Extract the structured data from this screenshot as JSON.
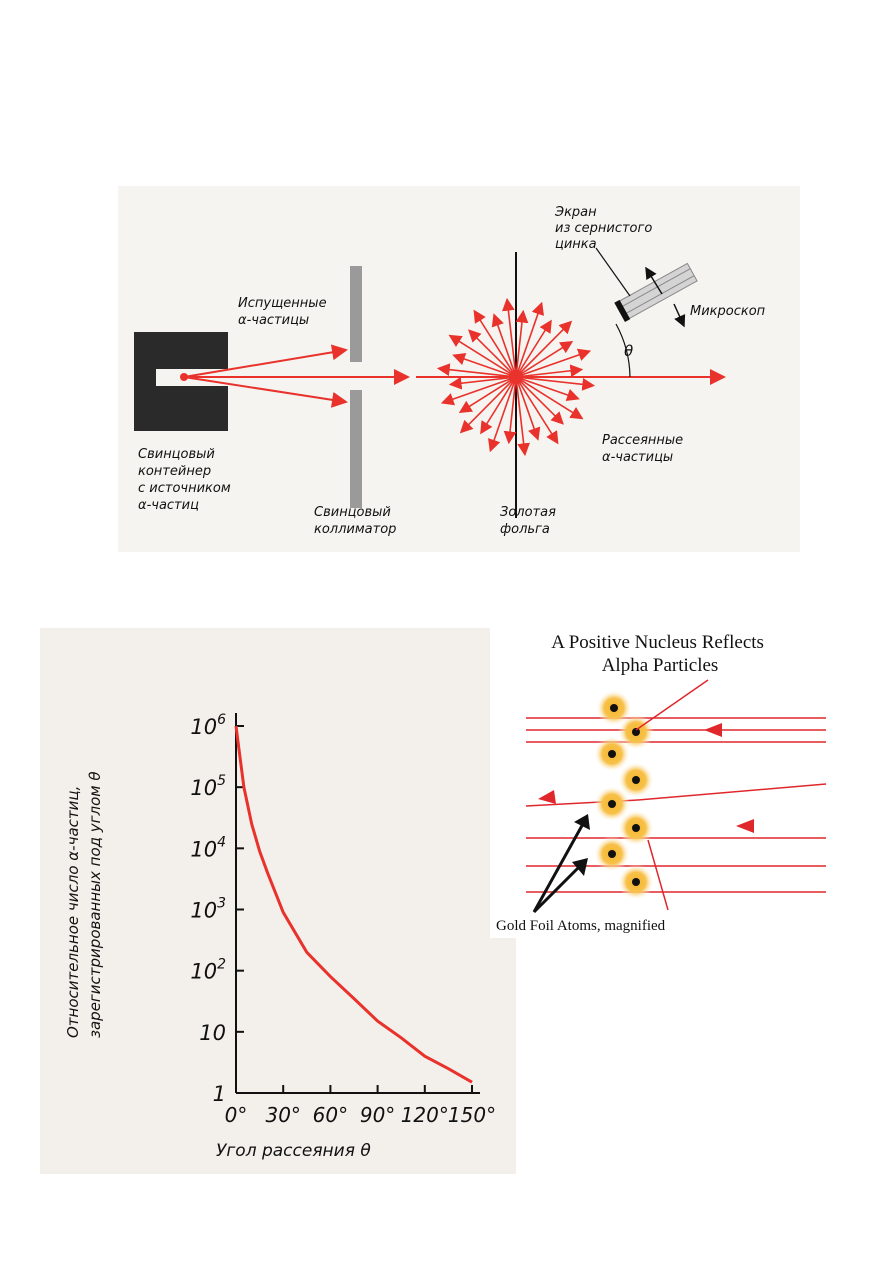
{
  "setup_diagram": {
    "screen_label": [
      "Экран",
      "из сернистого",
      "цинка"
    ],
    "emitted_label": [
      "Испущенные",
      "α-частицы"
    ],
    "microscope_label": "Микроскоп",
    "theta_label": "θ",
    "scattered_label": [
      "Рассеянные",
      "α-частицы"
    ],
    "container_label": [
      "Свинцовый",
      "контейнер",
      "с источником",
      "α-частиц"
    ],
    "collimator_label": [
      "Свинцовый",
      "коллиматор"
    ],
    "foil_label": [
      "Золотая",
      "фольга"
    ],
    "colors": {
      "beam": "#e8322b",
      "lead": "#2a2a2a",
      "collimator": "#9a9a9a"
    }
  },
  "chart_data": {
    "type": "line",
    "ylabel": [
      "Относительное число α-частиц,",
      "зарегистрированных под углом θ"
    ],
    "xlabel": "Угол рассеяния θ",
    "x_ticks": [
      "0°",
      "30°",
      "60°",
      "90°",
      "120°",
      "150°"
    ],
    "y_ticks": [
      {
        "base": "1",
        "exp": ""
      },
      {
        "base": "10",
        "exp": ""
      },
      {
        "base": "10",
        "exp": "2"
      },
      {
        "base": "10",
        "exp": "3"
      },
      {
        "base": "10",
        "exp": "4"
      },
      {
        "base": "10",
        "exp": "5"
      },
      {
        "base": "10",
        "exp": "6"
      }
    ],
    "y_scale": "log",
    "xlim": [
      0,
      150
    ],
    "ylim": [
      1,
      1000000
    ],
    "series": [
      {
        "x": [
          0,
          2,
          5,
          10,
          15,
          20,
          30,
          45,
          60,
          75,
          90,
          105,
          120,
          135,
          150
        ],
        "y": [
          1000000,
          400000,
          100000,
          25000,
          9000,
          4000,
          900,
          200,
          80,
          35,
          15,
          8,
          4,
          2.5,
          1.5
        ],
        "color": "#e8322b"
      }
    ]
  },
  "nucleus_diagram": {
    "title": [
      "A Positive Nucleus Reflects",
      "Alpha Particles"
    ],
    "caption": "Gold Foil Atoms, magnified",
    "colors": {
      "ray": "#e0282c",
      "glow": "#f5b62a",
      "core": "#111111"
    }
  }
}
